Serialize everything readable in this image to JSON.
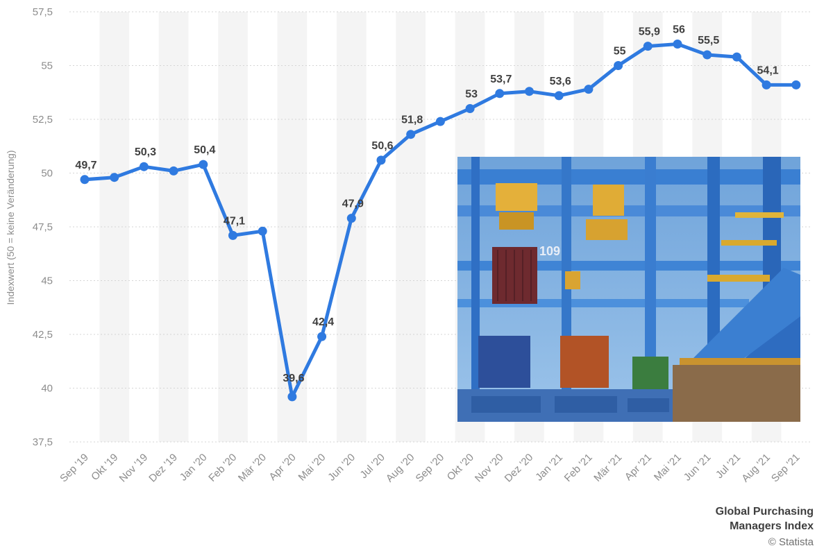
{
  "chart_data": {
    "type": "line",
    "categories": [
      "Sep '19",
      "Okt '19",
      "Nov '19",
      "Dez '19",
      "Jan '20",
      "Feb '20",
      "Mär '20",
      "Apr '20",
      "Mai '20",
      "Jun '20",
      "Jul '20",
      "Aug '20",
      "Sep '20",
      "Okt '20",
      "Nov '20",
      "Dez '20",
      "Jan '21",
      "Feb '21",
      "Mär '21",
      "Apr '21",
      "Mai '21",
      "Jun '21",
      "Jul '21",
      "Aug '21",
      "Sep '21"
    ],
    "values": [
      49.7,
      49.8,
      50.3,
      50.1,
      50.4,
      47.1,
      47.3,
      39.6,
      42.4,
      47.9,
      50.6,
      51.8,
      52.4,
      53,
      53.7,
      53.8,
      53.6,
      53.9,
      55,
      55.9,
      56,
      55.5,
      55.4,
      54.1,
      54.1
    ],
    "data_labels": [
      "49,7",
      "",
      "50,3",
      "",
      "50,4",
      "47,1",
      "",
      "39,6",
      "42,4",
      "47,9",
      "50,6",
      "51,8",
      "",
      "53",
      "53,7",
      "",
      "53,6",
      "",
      "55",
      "55,9",
      "56",
      "55,5",
      "",
      "54,1",
      ""
    ],
    "ylabel": "Indexwert (50 = keine Veränderung)",
    "ylim": [
      37.5,
      57.5
    ],
    "yticks": [
      "37,5",
      "40",
      "42,5",
      "45",
      "47,5",
      "50",
      "52,5",
      "55",
      "57,5"
    ],
    "line_color": "#2f7ae0",
    "grid": true
  },
  "caption": {
    "line1": "Global Purchasing",
    "line2": "Managers Index",
    "credit": "© Statista"
  },
  "photo": {
    "crane_number": "109"
  }
}
